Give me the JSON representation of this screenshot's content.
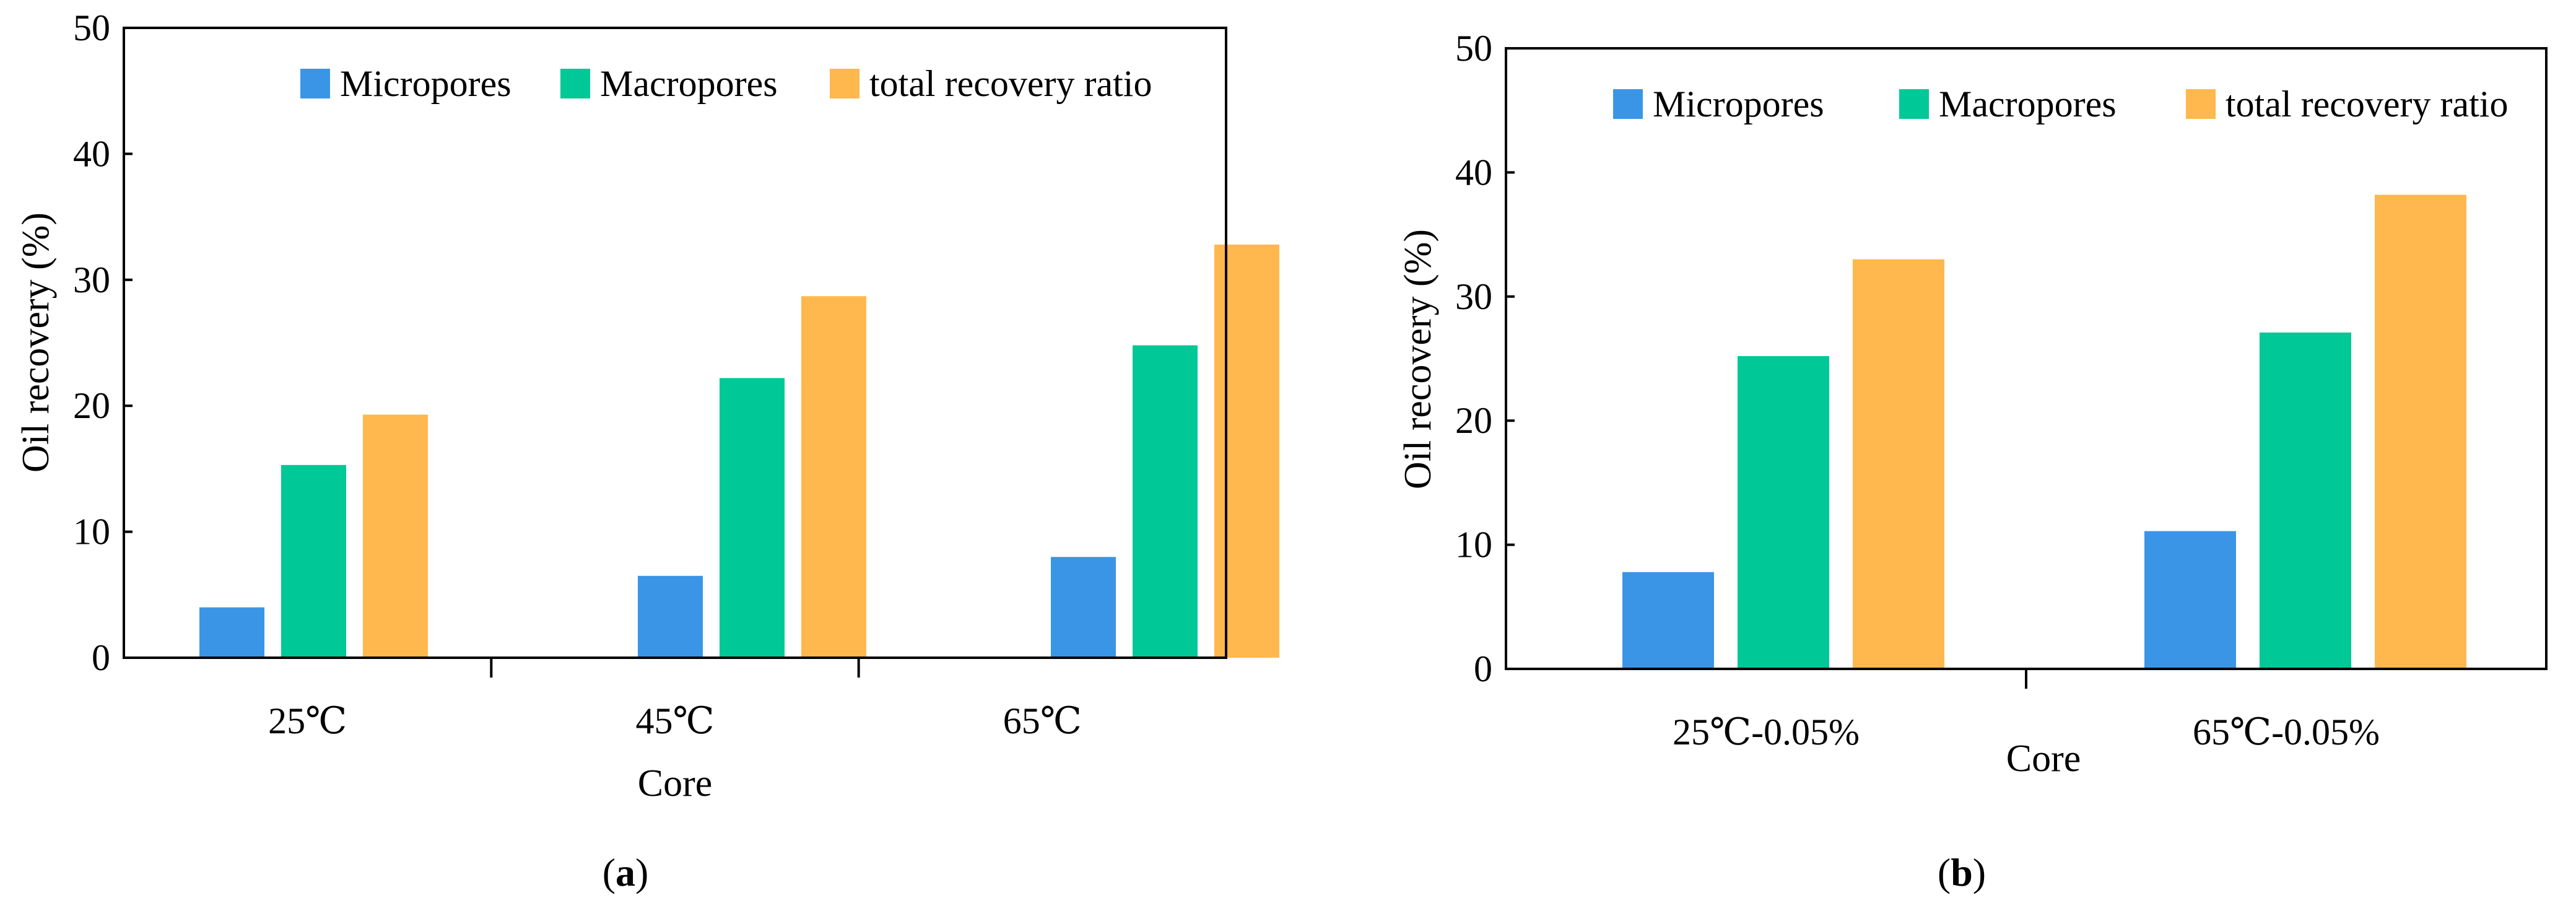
{
  "chart_data": [
    {
      "panel": "a",
      "type": "bar",
      "categories": [
        "25℃",
        "45℃",
        "65℃"
      ],
      "series": [
        {
          "name": "Micropores",
          "values": [
            4.0,
            6.5,
            8.0
          ]
        },
        {
          "name": "Macropores",
          "values": [
            15.3,
            22.2,
            24.8
          ]
        },
        {
          "name": "total recovery ratio",
          "values": [
            19.3,
            28.7,
            32.8
          ]
        }
      ],
      "xlabel": "Core",
      "ylabel": "Oil recovery (%)",
      "ylim": [
        0,
        50
      ],
      "yticks": [
        0,
        10,
        20,
        30,
        40,
        50
      ],
      "legend": "top-right",
      "grid": false,
      "caption": {
        "open": "(",
        "letter": "a",
        "close": ")"
      }
    },
    {
      "panel": "b",
      "type": "bar",
      "categories": [
        "25℃-0.05%",
        "65℃-0.05%"
      ],
      "series": [
        {
          "name": "Micropores",
          "values": [
            7.8,
            11.1
          ]
        },
        {
          "name": "Macropores",
          "values": [
            25.2,
            27.1
          ]
        },
        {
          "name": "total recovery ratio",
          "values": [
            33.0,
            38.2
          ]
        }
      ],
      "xlabel": "Core",
      "ylabel": "Oil recovery (%)",
      "ylim": [
        0,
        50
      ],
      "yticks": [
        0,
        10,
        20,
        30,
        40,
        50
      ],
      "legend": "top-right",
      "grid": false,
      "caption": {
        "open": "(",
        "letter": "b",
        "close": ")"
      }
    }
  ],
  "colors": {
    "Micropores": "#3b95e6",
    "Macropores": "#00c896",
    "total recovery ratio": "#ffb84d",
    "axis": "#000000"
  }
}
